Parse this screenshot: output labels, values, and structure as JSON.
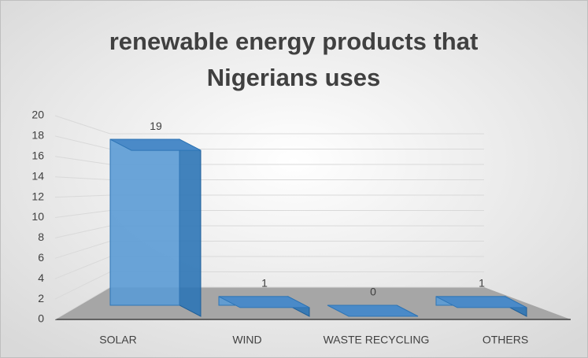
{
  "chart_data": {
    "type": "bar3d",
    "title": "renewable energy products that Nigerians uses",
    "categories": [
      "SOLAR",
      "WIND",
      "WASTE RECYCLING",
      "OTHERS"
    ],
    "values": [
      19,
      1,
      0,
      1
    ],
    "color": "#5b9bd5",
    "ylim": [
      0,
      20
    ],
    "yticks": [
      0,
      2,
      4,
      6,
      8,
      10,
      12,
      14,
      16,
      18,
      20
    ],
    "grid": true
  }
}
